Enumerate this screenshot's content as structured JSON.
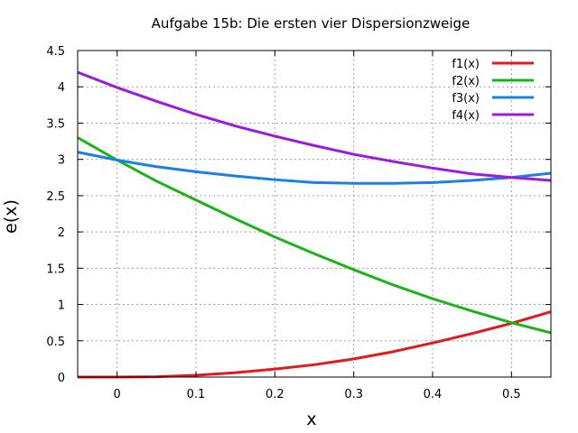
{
  "chart_data": {
    "type": "line",
    "title": "Aufgabe 15b: Die ersten vier Dispersionzweige",
    "xlabel": "x",
    "ylabel": "e(x)",
    "xlim": [
      -0.05,
      0.55
    ],
    "ylim": [
      0,
      4.5
    ],
    "xticks": [
      0,
      0.1,
      0.2,
      0.3,
      0.4,
      0.5
    ],
    "xtick_labels": [
      "0",
      "0.1",
      "0.2",
      "0.3",
      "0.4",
      "0.5"
    ],
    "yticks": [
      0,
      0.5,
      1,
      1.5,
      2,
      2.5,
      3,
      3.5,
      4,
      4.5
    ],
    "ytick_labels": [
      "0",
      "0.5",
      "1",
      "1.5",
      "2",
      "2.5",
      "3",
      "3.5",
      "4",
      "4.5"
    ],
    "grid": true,
    "legend_position": "top-right",
    "series": [
      {
        "name": "f1(x)",
        "color": "#e31a1c",
        "x": [
          -0.05,
          0,
          0.05,
          0.1,
          0.15,
          0.2,
          0.25,
          0.3,
          0.35,
          0.4,
          0.45,
          0.5,
          0.55
        ],
        "y": [
          0.0,
          0.0,
          0.005,
          0.025,
          0.06,
          0.11,
          0.17,
          0.25,
          0.35,
          0.47,
          0.6,
          0.74,
          0.9
        ]
      },
      {
        "name": "f2(x)",
        "color": "#1ab41a",
        "x": [
          -0.05,
          0,
          0.05,
          0.1,
          0.15,
          0.2,
          0.25,
          0.3,
          0.35,
          0.4,
          0.45,
          0.5,
          0.55
        ],
        "y": [
          3.3,
          2.99,
          2.7,
          2.44,
          2.18,
          1.93,
          1.7,
          1.48,
          1.27,
          1.08,
          0.91,
          0.75,
          0.61
        ]
      },
      {
        "name": "f3(x)",
        "color": "#1a80e6",
        "x": [
          -0.05,
          0,
          0.05,
          0.1,
          0.15,
          0.2,
          0.25,
          0.3,
          0.35,
          0.4,
          0.45,
          0.5,
          0.55
        ],
        "y": [
          3.1,
          2.99,
          2.9,
          2.83,
          2.77,
          2.72,
          2.68,
          2.67,
          2.67,
          2.68,
          2.71,
          2.75,
          2.81
        ]
      },
      {
        "name": "f4(x)",
        "color": "#9a1ae0",
        "x": [
          -0.05,
          0,
          0.05,
          0.1,
          0.15,
          0.2,
          0.25,
          0.3,
          0.35,
          0.4,
          0.45,
          0.5,
          0.55
        ],
        "y": [
          4.2,
          3.99,
          3.8,
          3.62,
          3.46,
          3.32,
          3.19,
          3.07,
          2.97,
          2.88,
          2.8,
          2.75,
          2.71
        ]
      }
    ]
  }
}
